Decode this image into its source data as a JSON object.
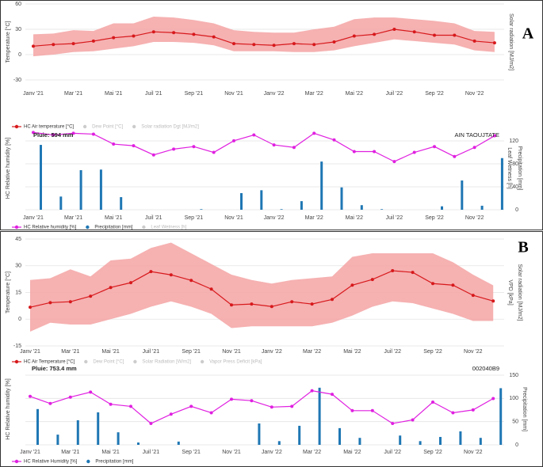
{
  "panels": [
    {
      "label": "A",
      "rain": "Pluie: 594 mm",
      "station": "AIN TAOUJTATE"
    },
    {
      "label": "B",
      "rain": "Pluie: 753.4 mm",
      "station": "002040B9"
    }
  ],
  "chart_data": [
    {
      "type": "line",
      "y_label": "Temperature [°C]",
      "y2_labels": [
        "Solar radiation [MJ/m2]"
      ],
      "categories": [
        "Janv '21",
        null,
        "Mar '21",
        null,
        "Mai '21",
        null,
        "Juil '21",
        null,
        "Sep '21",
        null,
        "Nov '21",
        null,
        "Janv '22",
        null,
        "Mar '22",
        null,
        "Mai '22",
        null,
        "Juil '22",
        null,
        "Sep '22",
        null,
        "Nov '22",
        null
      ],
      "ylim": [
        -30,
        60
      ],
      "yticks": [
        -30,
        0,
        30,
        60
      ],
      "grid": true,
      "series": [
        {
          "name": "HC Air temperature [°C]",
          "color": "#d7191c",
          "band_color": "#f4a3a3",
          "values": [
            10,
            12,
            13,
            16,
            20,
            22,
            27,
            26,
            24,
            21,
            13,
            12,
            11,
            13,
            12,
            15,
            22,
            24,
            30,
            27,
            23,
            23,
            16,
            14
          ],
          "low": [
            -2,
            0,
            3,
            4,
            7,
            10,
            15,
            15,
            14,
            11,
            4,
            4,
            4,
            3,
            3,
            5,
            10,
            14,
            18,
            16,
            14,
            12,
            5,
            3
          ],
          "high": [
            24,
            25,
            29,
            28,
            37,
            37,
            45,
            44,
            41,
            37,
            29,
            27,
            26,
            26,
            30,
            33,
            42,
            44,
            44,
            42,
            40,
            37,
            28,
            27
          ]
        }
      ],
      "inactive_series": [
        "Dew Point [°C]",
        "Solar radiation Dgt [MJ/m2]"
      ]
    },
    {
      "type": "combo",
      "y_label": "HC Relative humidity [%]",
      "y2_labels": [
        "Leaf Wetness [h]",
        "Precipitation [mm]"
      ],
      "categories": [
        "Janv '21",
        null,
        "Mar '21",
        null,
        "Mai '21",
        null,
        "Juil '21",
        null,
        "Sep '21",
        null,
        "Nov '21",
        null,
        "Janv '22",
        null,
        "Mar '22",
        null,
        "Mai '22",
        null,
        "Juil '22",
        null,
        "Sep '22",
        null,
        "Nov '22",
        null
      ],
      "ylim": [
        0,
        100
      ],
      "y2lim": [
        0,
        120
      ],
      "y2ticks": [
        0,
        40,
        80,
        120
      ],
      "grid": true,
      "series": [
        {
          "name": "HC Relative humidity [%]",
          "kind": "line",
          "color": "#e020e0",
          "values": [
            93,
            90,
            92,
            91,
            79,
            77,
            66,
            73,
            76,
            69,
            83,
            90,
            78,
            75,
            92,
            84,
            70,
            70,
            58,
            69,
            76,
            64,
            75,
            89
          ]
        },
        {
          "name": "Precipitation [mm]",
          "kind": "bar",
          "axis": "y2",
          "color": "#1f77b4",
          "values": [
            113,
            23,
            69,
            70,
            22,
            0,
            0,
            0,
            1,
            0,
            29,
            34,
            1,
            15,
            84,
            39,
            8,
            1,
            0,
            0,
            6,
            51,
            7,
            90
          ]
        }
      ],
      "inactive_series": [
        "Leaf Wetness [h]"
      ]
    },
    {
      "type": "line",
      "y_label": "Temperature [°C]",
      "y2_labels": [
        "VPD [kPa]",
        "Solar radiation [MJ/m2]"
      ],
      "categories": [
        "Janv '21",
        null,
        "Mar '21",
        null,
        "Mai '21",
        null,
        "Juil '21",
        null,
        "Sep '21",
        null,
        "Nov '21",
        null,
        "Janv '22",
        null,
        "Mar '22",
        null,
        "Mai '22",
        null,
        "Juil '22",
        null,
        "Sep '22",
        null,
        "Nov '22",
        null
      ],
      "ylim": [
        -15,
        45
      ],
      "yticks": [
        -15,
        0,
        15,
        30,
        45
      ],
      "grid": true,
      "series": [
        {
          "name": "HC Air Temperature [°C]",
          "color": "#d7191c",
          "band_color": "#f4a3a3",
          "values": [
            6.7,
            9.3,
            9.8,
            12.9,
            17.8,
            20.5,
            26.7,
            24.9,
            21.8,
            16.9,
            8,
            8.5,
            7.1,
            9.8,
            8.5,
            11.1,
            19.1,
            22.3,
            27.2,
            26.3,
            20,
            19.1,
            13.4,
            10.2
          ],
          "low": [
            -7,
            -2,
            -3,
            -3,
            0,
            3,
            7,
            10,
            7,
            3,
            -5,
            -4,
            -4,
            -4,
            -4,
            -2,
            2,
            7,
            10,
            9,
            6,
            3,
            -1,
            -1
          ],
          "high": [
            22,
            23,
            28,
            24,
            33,
            34,
            40,
            43,
            37,
            31,
            25,
            22,
            20,
            22,
            23,
            24,
            35,
            37,
            37,
            37,
            37,
            32,
            25,
            19
          ]
        }
      ],
      "inactive_series": [
        "Dew Point [°C]",
        "Solar Radiation [W/m2]",
        "Vapor Press Deficit [kPa]"
      ]
    },
    {
      "type": "combo",
      "y_label": "HC Relative humidity [%]",
      "y2_labels": [
        "Precipitation [mm]"
      ],
      "categories": [
        "Janv '21",
        null,
        "Mar '21",
        null,
        "Mai '21",
        null,
        "Juil '21",
        null,
        "Sep '21",
        null,
        "Nov '21",
        null,
        "Janv '22",
        null,
        "Mar '22",
        null,
        "Mai '22",
        null,
        "Juil '22",
        null,
        "Sep '22",
        null,
        "Nov '22",
        null
      ],
      "ylim": [
        0,
        100
      ],
      "y2lim": [
        0,
        150
      ],
      "y2ticks": [
        0,
        50,
        100,
        150
      ],
      "grid": true,
      "series": [
        {
          "name": "HC Relative Humidity [%]",
          "kind": "line",
          "color": "#e020e0",
          "values": [
            68,
            58,
            67,
            74,
            57,
            54,
            30,
            43,
            54,
            45,
            64,
            62,
            53,
            54,
            76,
            71,
            48,
            48,
            30,
            35,
            60,
            45,
            49,
            65
          ]
        },
        {
          "name": "Precipitation [mm]",
          "kind": "bar",
          "axis": "y2",
          "color": "#1f77b4",
          "values": [
            77,
            22,
            53,
            70,
            27,
            5,
            0,
            7,
            0,
            0,
            0,
            46,
            8,
            41,
            123,
            36,
            15,
            0,
            20,
            8,
            17,
            29,
            15,
            122
          ]
        }
      ],
      "inactive_series": []
    }
  ]
}
